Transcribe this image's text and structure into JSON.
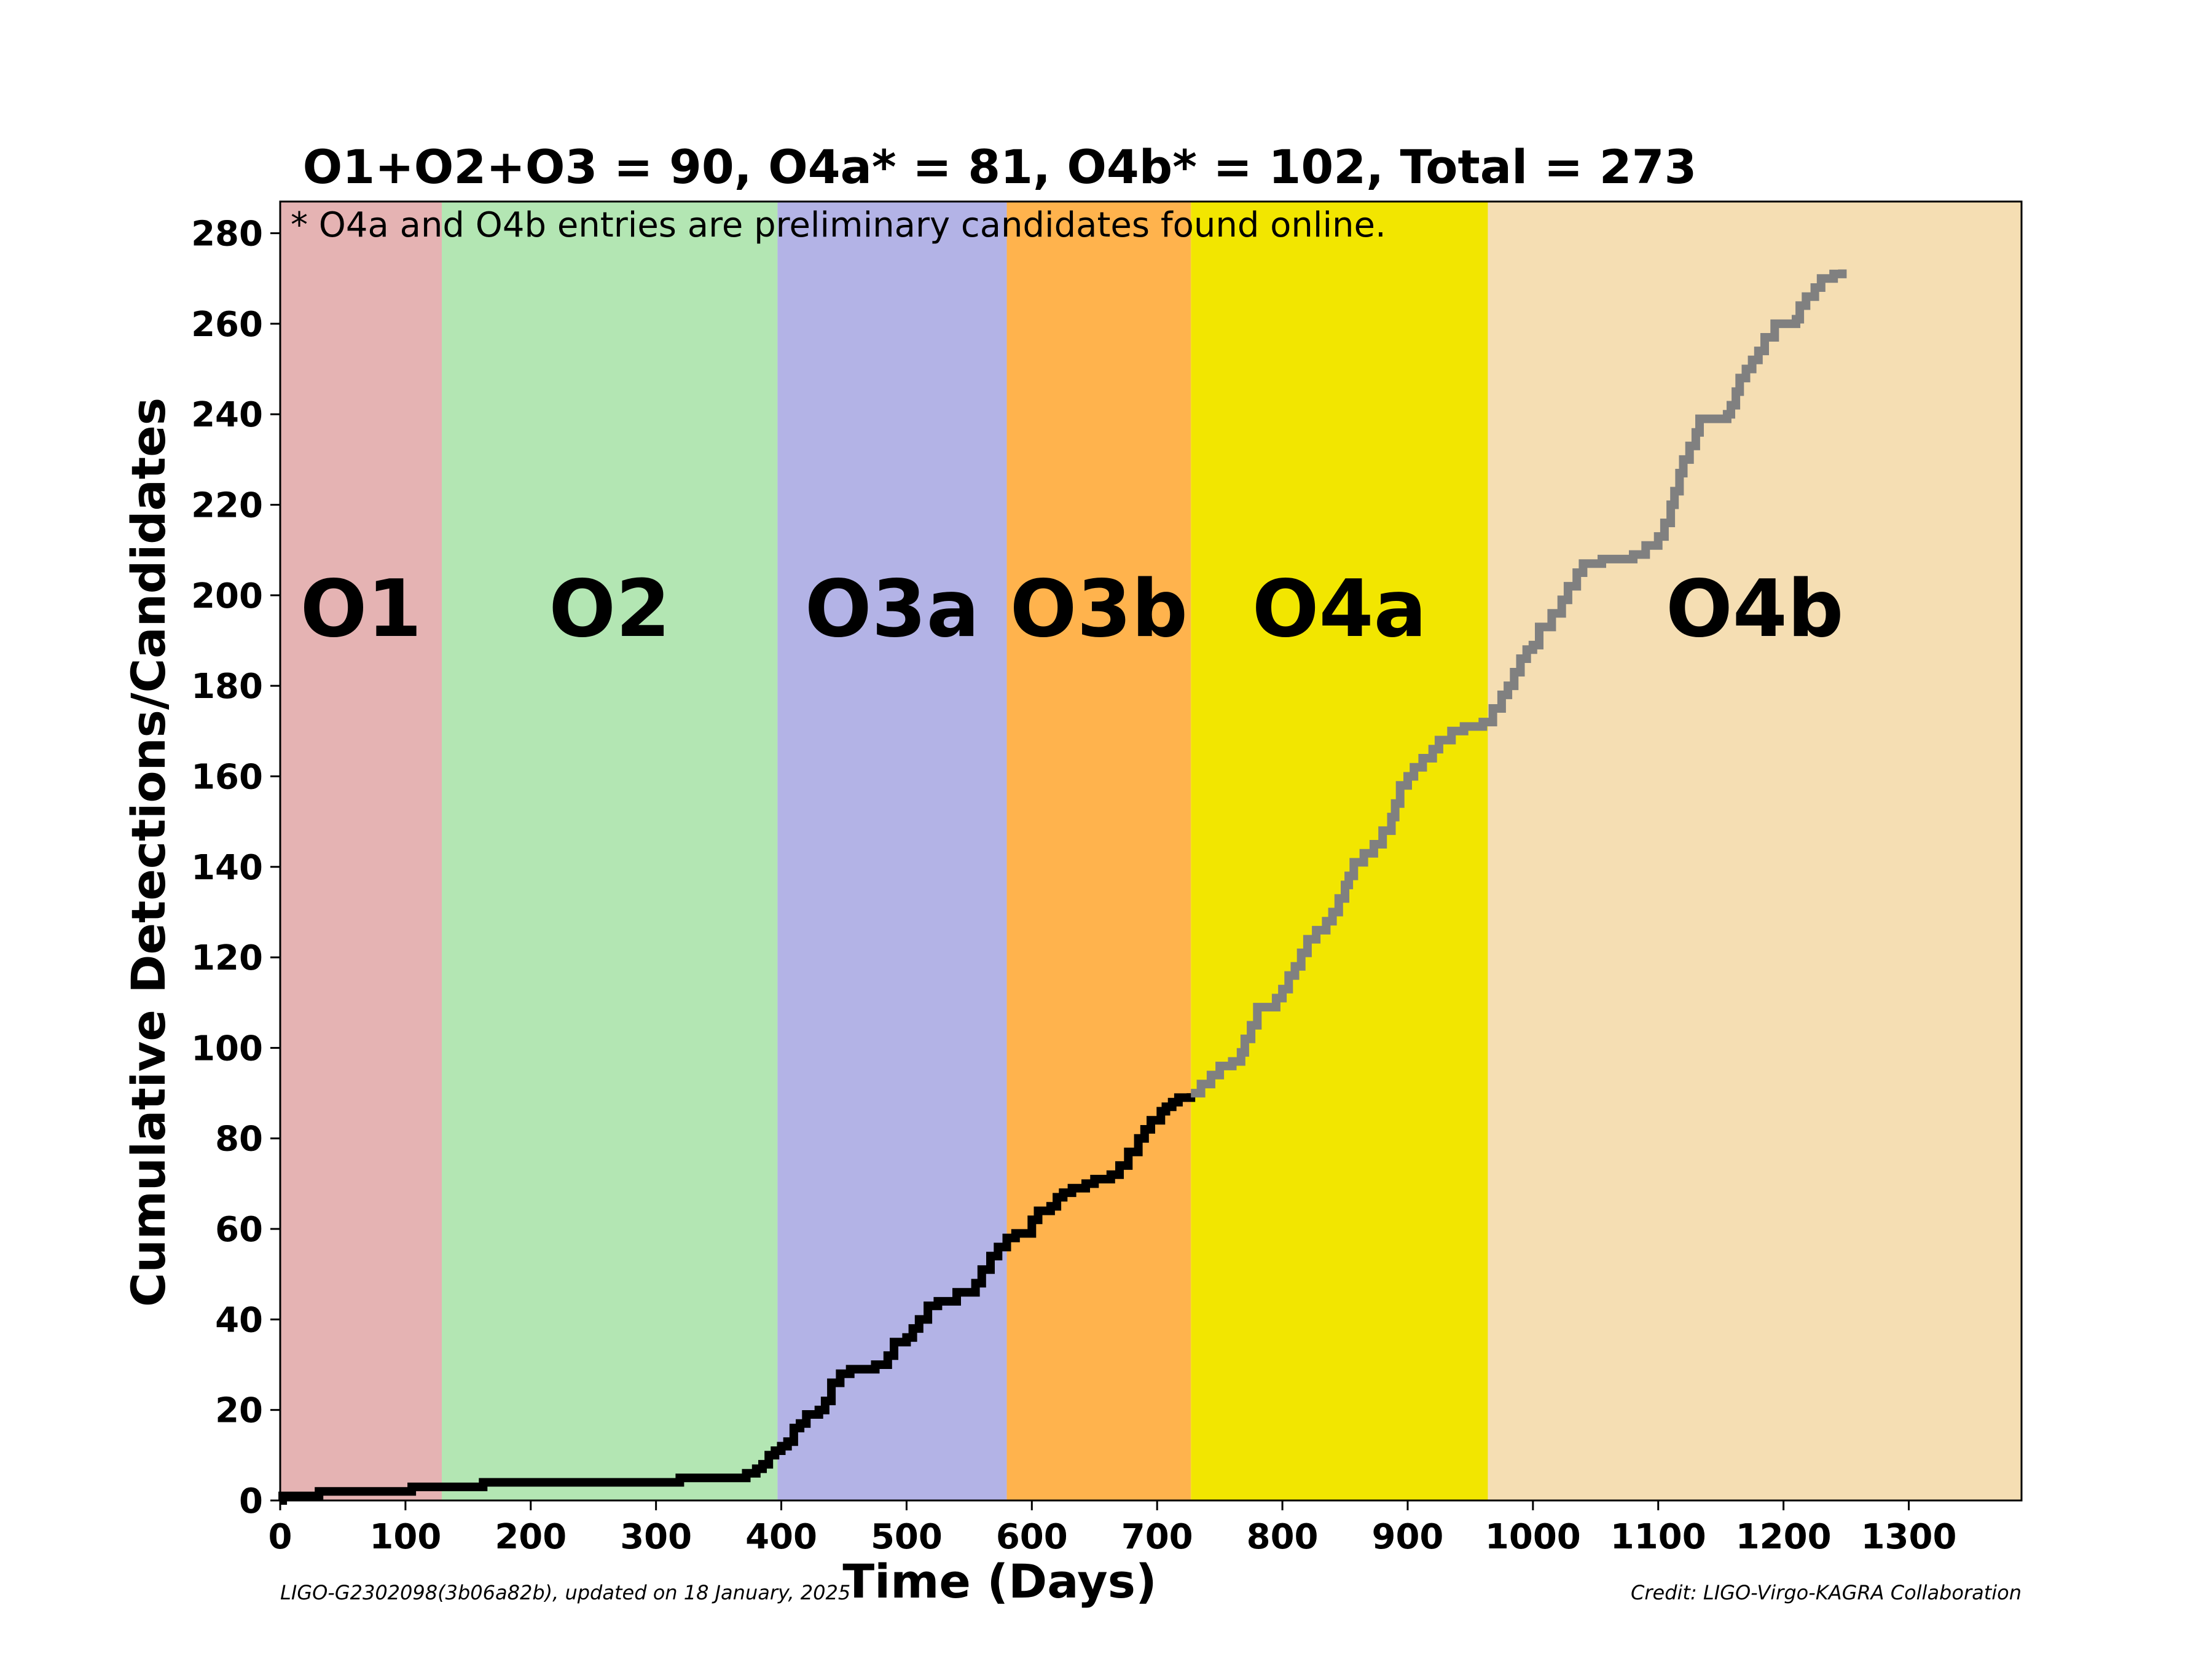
{
  "chart_data": {
    "type": "line",
    "title": "O1+O2+O3 = 90,  O4a* = 81,  O4b* = 102,  Total = 273",
    "xlabel": "Time (Days)",
    "ylabel": "Cumulative Detections/Candidates",
    "xlim": [
      0,
      1390
    ],
    "ylim": [
      0,
      287
    ],
    "xticks": [
      0,
      100,
      200,
      300,
      400,
      500,
      600,
      700,
      800,
      900,
      1000,
      1100,
      1200,
      1300
    ],
    "yticks": [
      0,
      20,
      40,
      60,
      80,
      100,
      120,
      140,
      160,
      180,
      200,
      220,
      240,
      260,
      280
    ],
    "grid": false,
    "note": "* O4a and O4b entries are preliminary candidates found online.",
    "footer_left": "LIGO-G2302098(3b06a82b), updated on 18 January, 2025",
    "footer_right": "Credit: LIGO-Virgo-KAGRA Collaboration",
    "runs": [
      {
        "label": "O1",
        "start": 0,
        "end": 129,
        "color": "#e5b3b3"
      },
      {
        "label": "O2",
        "start": 129,
        "end": 397,
        "color": "#b3e6b3"
      },
      {
        "label": "O3a",
        "start": 397,
        "end": 580,
        "color": "#b3b3e6"
      },
      {
        "label": "O3b",
        "start": 580,
        "end": 727,
        "color": "#ffb34d"
      },
      {
        "label": "O4a",
        "start": 727,
        "end": 964,
        "color": "#f2e600"
      },
      {
        "label": "O4b",
        "start": 964,
        "end": 1390,
        "color": "#f5deb3"
      }
    ],
    "series": [
      {
        "color": "#000000",
        "points": [
          [
            0,
            0
          ],
          [
            2,
            1
          ],
          [
            30,
            1
          ],
          [
            31,
            2
          ],
          [
            104,
            2
          ],
          [
            105,
            3
          ],
          [
            161,
            3
          ],
          [
            162,
            4
          ],
          [
            318,
            4
          ],
          [
            319,
            5
          ],
          [
            370,
            5
          ],
          [
            372,
            6
          ],
          [
            380,
            7
          ],
          [
            385,
            8
          ],
          [
            390,
            10
          ],
          [
            395,
            11
          ],
          [
            400,
            12
          ],
          [
            405,
            13
          ],
          [
            410,
            16
          ],
          [
            415,
            17
          ],
          [
            420,
            19
          ],
          [
            430,
            20
          ],
          [
            435,
            22
          ],
          [
            440,
            26
          ],
          [
            447,
            28
          ],
          [
            455,
            29
          ],
          [
            475,
            30
          ],
          [
            485,
            32
          ],
          [
            490,
            35
          ],
          [
            500,
            36
          ],
          [
            505,
            38
          ],
          [
            510,
            40
          ],
          [
            517,
            43
          ],
          [
            525,
            44
          ],
          [
            540,
            46
          ],
          [
            555,
            48
          ],
          [
            560,
            51
          ],
          [
            567,
            54
          ],
          [
            573,
            56
          ],
          [
            580,
            58
          ],
          [
            587,
            59
          ],
          [
            600,
            62
          ],
          [
            605,
            64
          ],
          [
            615,
            65
          ],
          [
            620,
            67
          ],
          [
            625,
            68
          ],
          [
            632,
            69
          ],
          [
            643,
            70
          ],
          [
            650,
            71
          ],
          [
            663,
            72
          ],
          [
            670,
            74
          ],
          [
            677,
            77
          ],
          [
            685,
            80
          ],
          [
            690,
            82
          ],
          [
            695,
            84
          ],
          [
            703,
            86
          ],
          [
            707,
            87
          ],
          [
            712,
            88
          ],
          [
            717,
            89
          ],
          [
            727,
            90
          ]
        ]
      },
      {
        "color": "#808080",
        "points": [
          [
            727,
            90
          ],
          [
            735,
            92
          ],
          [
            743,
            94
          ],
          [
            750,
            96
          ],
          [
            760,
            97
          ],
          [
            767,
            99
          ],
          [
            770,
            102
          ],
          [
            775,
            105
          ],
          [
            780,
            109
          ],
          [
            795,
            111
          ],
          [
            800,
            113
          ],
          [
            805,
            116
          ],
          [
            810,
            118
          ],
          [
            815,
            121
          ],
          [
            820,
            124
          ],
          [
            827,
            126
          ],
          [
            835,
            128
          ],
          [
            840,
            130
          ],
          [
            845,
            133
          ],
          [
            850,
            136
          ],
          [
            853,
            138
          ],
          [
            857,
            141
          ],
          [
            865,
            143
          ],
          [
            873,
            145
          ],
          [
            880,
            148
          ],
          [
            887,
            151
          ],
          [
            890,
            154
          ],
          [
            894,
            158
          ],
          [
            900,
            160
          ],
          [
            905,
            162
          ],
          [
            912,
            164
          ],
          [
            920,
            166
          ],
          [
            925,
            168
          ],
          [
            935,
            170
          ],
          [
            945,
            171
          ],
          [
            960,
            172
          ],
          [
            968,
            175
          ],
          [
            975,
            178
          ],
          [
            980,
            180
          ],
          [
            985,
            183
          ],
          [
            990,
            186
          ],
          [
            995,
            188
          ],
          [
            1000,
            189
          ],
          [
            1005,
            193
          ],
          [
            1015,
            196
          ],
          [
            1023,
            199
          ],
          [
            1028,
            202
          ],
          [
            1035,
            205
          ],
          [
            1040,
            207
          ],
          [
            1055,
            208
          ],
          [
            1080,
            209
          ],
          [
            1090,
            211
          ],
          [
            1100,
            213
          ],
          [
            1105,
            216
          ],
          [
            1110,
            220
          ],
          [
            1113,
            223
          ],
          [
            1117,
            227
          ],
          [
            1120,
            230
          ],
          [
            1125,
            233
          ],
          [
            1130,
            236
          ],
          [
            1133,
            239
          ],
          [
            1155,
            240
          ],
          [
            1158,
            242
          ],
          [
            1162,
            245
          ],
          [
            1165,
            248
          ],
          [
            1170,
            250
          ],
          [
            1175,
            252
          ],
          [
            1180,
            254
          ],
          [
            1185,
            257
          ],
          [
            1193,
            260
          ],
          [
            1210,
            261
          ],
          [
            1213,
            264
          ],
          [
            1218,
            266
          ],
          [
            1225,
            268
          ],
          [
            1230,
            270
          ],
          [
            1240,
            271
          ],
          [
            1247,
            272
          ]
        ]
      }
    ]
  }
}
